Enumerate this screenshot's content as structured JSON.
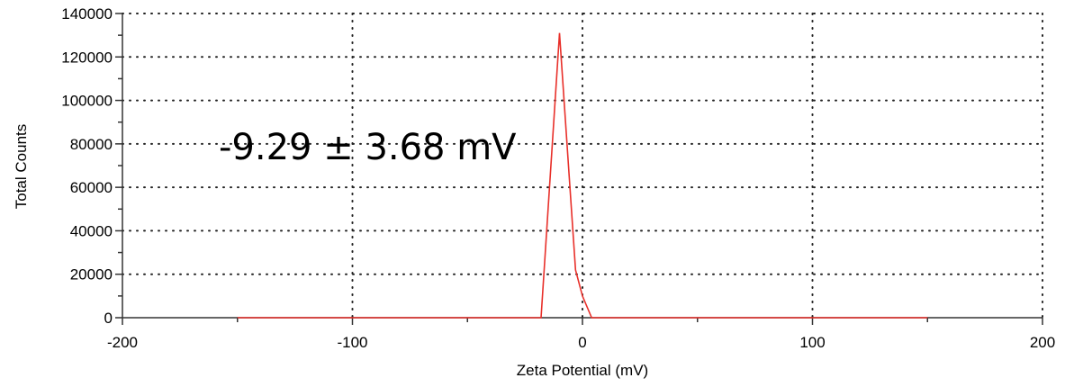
{
  "chart_data": {
    "type": "line",
    "xlabel": "Zeta Potential (mV)",
    "ylabel": "Total Counts",
    "xlim": [
      -200,
      200
    ],
    "ylim": [
      0,
      140000
    ],
    "x_ticks": [
      "-200",
      "-100",
      "0",
      "100",
      "200"
    ],
    "x_tick_values": [
      -200,
      -100,
      0,
      100,
      200
    ],
    "y_ticks": [
      "0",
      "20000",
      "40000",
      "60000",
      "80000",
      "100000",
      "120000",
      "140000"
    ],
    "y_tick_values": [
      0,
      20000,
      40000,
      60000,
      80000,
      100000,
      120000,
      140000
    ],
    "grid": true,
    "annotation": "-9.29 ± 3.68 mV",
    "series": [
      {
        "color": "#e8302a",
        "x": [
          -150,
          -18,
          -10,
          -3,
          0,
          4,
          150
        ],
        "y": [
          0,
          0,
          131000,
          22000,
          10000,
          0,
          0
        ]
      }
    ]
  }
}
